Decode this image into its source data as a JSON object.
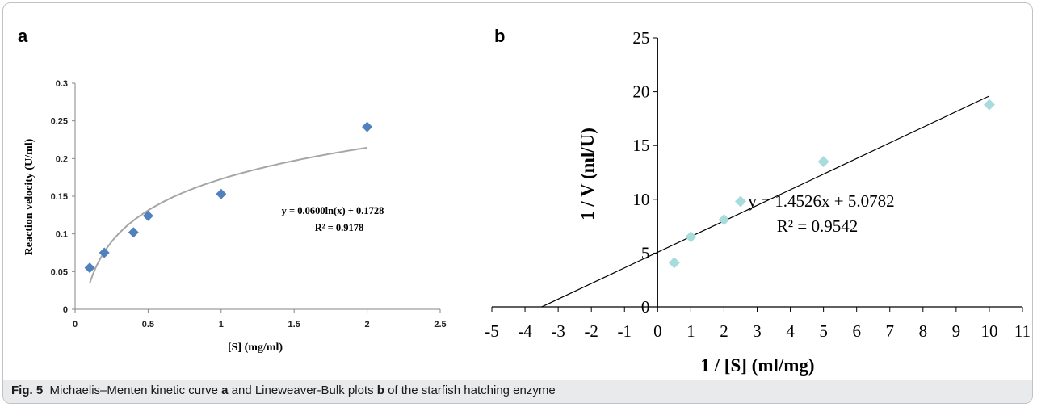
{
  "figure": {
    "caption_label": "Fig. 5",
    "caption_text_1": "Michaelis–Menten kinetic curve",
    "caption_bold_a": "a",
    "caption_text_2": "and Lineweaver-Bulk plots",
    "caption_bold_b": "b",
    "caption_text_3": "of the starfish hatching enzyme"
  },
  "chart_data": [
    {
      "panel_label": "a",
      "type": "scatter",
      "xlabel": "[S] (mg/ml)",
      "ylabel": "Reaction velocity (U/ml)",
      "xlim": [
        0,
        2.5
      ],
      "ylim": [
        0,
        0.3
      ],
      "xticks": [
        "0",
        "0.5",
        "1",
        "1.5",
        "2",
        "2.5"
      ],
      "yticks": [
        "0",
        "0.05",
        "0.1",
        "0.15",
        "0.2",
        "0.25",
        "0.3"
      ],
      "points": [
        {
          "x": 0.1,
          "y": 0.055
        },
        {
          "x": 0.2,
          "y": 0.075
        },
        {
          "x": 0.4,
          "y": 0.102
        },
        {
          "x": 0.5,
          "y": 0.124
        },
        {
          "x": 1.0,
          "y": 0.153
        },
        {
          "x": 2.0,
          "y": 0.242
        }
      ],
      "marker_color": "#4f81bd",
      "trendline": {
        "kind": "logarithmic",
        "a": 0.06,
        "b": 0.1728,
        "x_from": 0.1,
        "x_to": 2.0,
        "color": "#a6a6a6"
      },
      "equation": "y = 0.0600ln(x) + 0.1728",
      "r_squared": "R² = 0.9178",
      "grid": false
    },
    {
      "panel_label": "b",
      "type": "scatter",
      "xlabel": "1 / [S] (ml/mg)",
      "ylabel": "1 / V (ml/U)",
      "xlim": [
        -5,
        11
      ],
      "ylim": [
        0,
        25
      ],
      "xticks": [
        "-5",
        "-4",
        "-3",
        "-2",
        "-1",
        "0",
        "1",
        "2",
        "3",
        "4",
        "5",
        "6",
        "7",
        "8",
        "9",
        "10",
        "11"
      ],
      "yticks": [
        "0",
        "5",
        "10",
        "15",
        "20",
        "25"
      ],
      "points": [
        {
          "x": 0.5,
          "y": 4.1
        },
        {
          "x": 1.0,
          "y": 6.5
        },
        {
          "x": 2.0,
          "y": 8.1
        },
        {
          "x": 2.5,
          "y": 9.8
        },
        {
          "x": 5.0,
          "y": 13.5
        },
        {
          "x": 10.0,
          "y": 18.8
        }
      ],
      "marker_color": "#a8dcdc",
      "trendline": {
        "kind": "linear",
        "slope": 1.4526,
        "intercept": 5.0782,
        "x_from": -3.5,
        "x_to": 10.0,
        "color": "#000000"
      },
      "equation": "y = 1.4526x + 5.0782",
      "r_squared": "R² = 0.9542",
      "grid": false
    }
  ]
}
